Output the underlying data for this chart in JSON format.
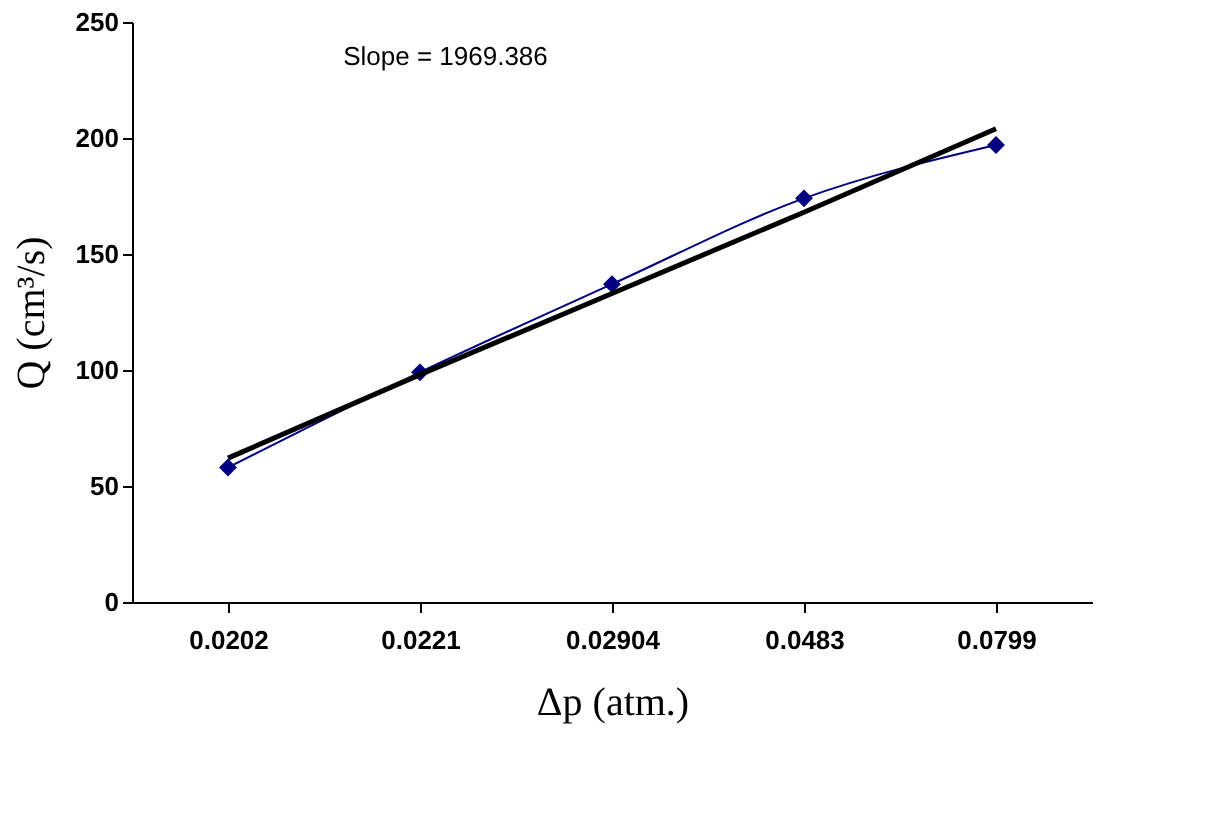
{
  "chart_data": {
    "type": "line",
    "xlabel": "Δp (atm.)",
    "ylabel": "Q (cm³/s)",
    "categories": [
      "0.0202",
      "0.0221",
      "0.02904",
      "0.0483",
      "0.0799"
    ],
    "series": [
      {
        "color": "#000080",
        "values": [
          58,
          99,
          137,
          174,
          197
        ],
        "marker": "diamond",
        "line_style": "solid"
      },
      {
        "type": "line",
        "color": "#000000",
        "values": [
          62,
          98,
          133,
          168,
          204
        ],
        "marker": "none",
        "line_style": "solid"
      }
    ],
    "ylim": [
      0,
      250
    ],
    "yticks": [
      0,
      50,
      100,
      150,
      200,
      250
    ],
    "grid": false,
    "annotations": [
      "Slope = 1969.386"
    ]
  }
}
